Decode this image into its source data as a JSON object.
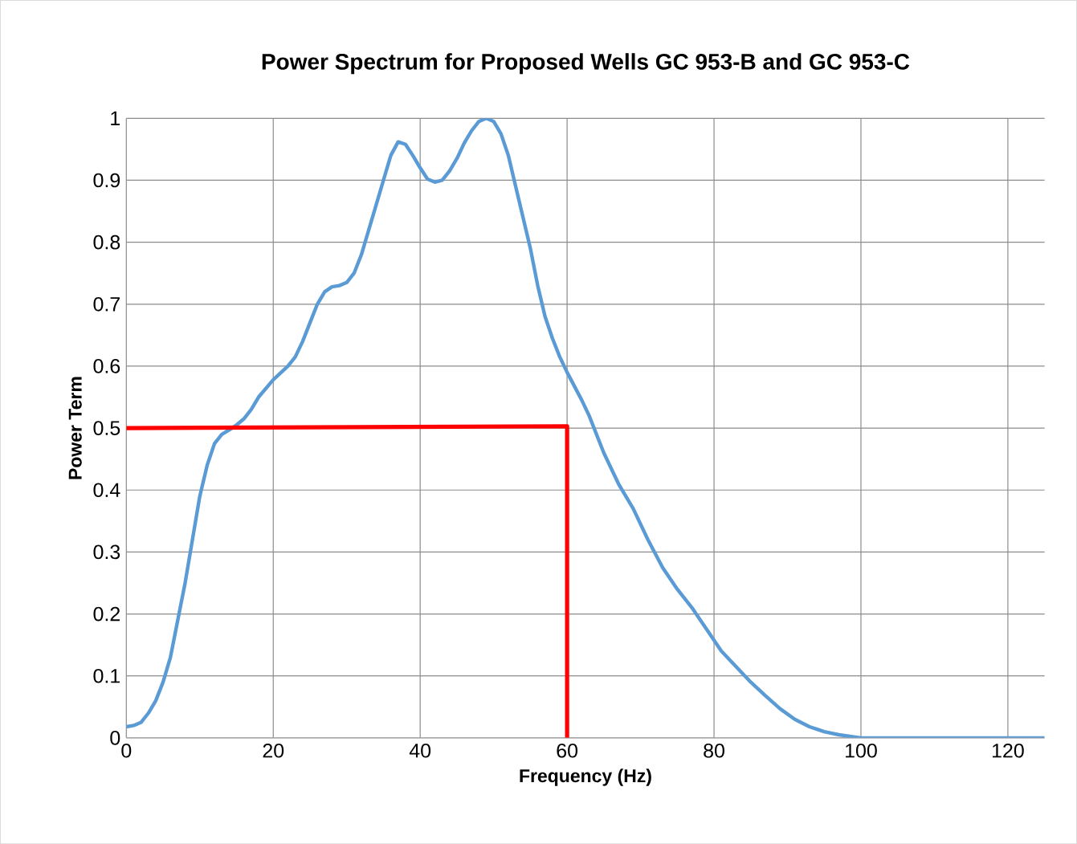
{
  "chart_data": {
    "type": "line",
    "title": "Power Spectrum for Proposed  Wells GC 953-B and GC 953-C",
    "xlabel": "Frequency (Hz)",
    "ylabel": "Power Term",
    "xlim": [
      0,
      125
    ],
    "xticks": [
      0,
      20,
      40,
      60,
      80,
      100,
      120
    ],
    "ylim": [
      0,
      1
    ],
    "yticks": [
      0,
      0.1,
      0.2,
      0.3,
      0.4,
      0.5,
      0.6,
      0.7,
      0.8,
      0.9,
      1
    ],
    "grid": true,
    "marker": "none",
    "line_style": "solid",
    "series": [
      {
        "color": "#5b9bd5",
        "x": [
          0,
          1,
          2,
          3,
          4,
          5,
          6,
          7,
          8,
          9,
          10,
          11,
          12,
          13,
          14,
          15,
          16,
          17,
          18,
          20,
          22,
          23,
          24,
          25,
          26,
          27,
          28,
          29,
          30,
          31,
          32,
          33,
          34,
          35,
          36,
          37,
          38,
          39,
          40,
          41,
          42,
          43,
          44,
          45,
          46,
          47,
          48,
          49,
          50,
          51,
          52,
          53,
          54,
          55,
          56,
          57,
          58,
          59,
          60,
          62,
          63,
          65,
          67,
          69,
          71,
          73,
          75,
          77,
          79,
          81,
          83,
          85,
          87,
          89,
          91,
          93,
          95,
          97,
          100,
          110,
          125
        ],
        "values": [
          0.018,
          0.02,
          0.025,
          0.04,
          0.06,
          0.09,
          0.13,
          0.19,
          0.25,
          0.32,
          0.39,
          0.44,
          0.475,
          0.49,
          0.497,
          0.505,
          0.515,
          0.53,
          0.55,
          0.578,
          0.6,
          0.615,
          0.64,
          0.67,
          0.7,
          0.72,
          0.728,
          0.73,
          0.735,
          0.75,
          0.78,
          0.82,
          0.86,
          0.9,
          0.94,
          0.962,
          0.958,
          0.94,
          0.92,
          0.902,
          0.897,
          0.9,
          0.915,
          0.935,
          0.96,
          0.98,
          0.995,
          1.0,
          0.995,
          0.975,
          0.94,
          0.89,
          0.84,
          0.79,
          0.73,
          0.68,
          0.645,
          0.615,
          0.59,
          0.545,
          0.52,
          0.46,
          0.41,
          0.37,
          0.32,
          0.275,
          0.24,
          0.21,
          0.175,
          0.14,
          0.115,
          0.09,
          0.068,
          0.047,
          0.03,
          0.018,
          0.01,
          0.005,
          0,
          0,
          0
        ]
      },
      {
        "color": "#ff0000",
        "x": [
          0,
          60,
          60
        ],
        "values": [
          0.5,
          0.503,
          0
        ]
      }
    ]
  }
}
